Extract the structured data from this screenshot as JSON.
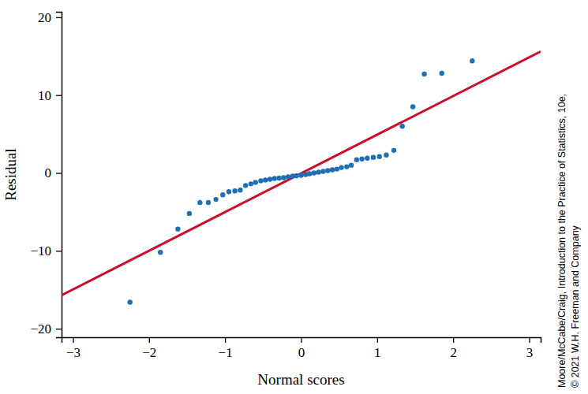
{
  "chart_data": {
    "type": "scatter",
    "x_label": "Normal scores",
    "y_label": "Residual",
    "annotations": [
      "Moore/McCabe/Craig, Introduction to the Practice of Statistics, 10e,",
      "© 2021 W.H. Freeman and Company"
    ],
    "xlim": [
      -3.15,
      3.15
    ],
    "ylim": [
      -21.1,
      20.7
    ],
    "xticks": [
      {
        "value": -3,
        "label": "−3"
      },
      {
        "value": -2,
        "label": "−2"
      },
      {
        "value": -1,
        "label": "−1"
      },
      0,
      1,
      2,
      3
    ],
    "yticks": [
      {
        "value": -20,
        "label": "−20"
      },
      {
        "value": -10,
        "label": "−10"
      },
      0,
      10,
      20
    ],
    "grid": false,
    "series": [
      {
        "type": "scatter",
        "color": "#1f6fb4",
        "marker": "circle",
        "x": [
          -2.25,
          -1.85,
          -1.62,
          -1.47,
          -1.33,
          -1.22,
          -1.12,
          -1.03,
          -0.95,
          -0.87,
          -0.8,
          -0.73,
          -0.66,
          -0.6,
          -0.53,
          -0.47,
          -0.41,
          -0.35,
          -0.29,
          -0.23,
          -0.17,
          -0.11,
          -0.06,
          0,
          0.06,
          0.11,
          0.17,
          0.23,
          0.29,
          0.35,
          0.41,
          0.47,
          0.53,
          0.6,
          0.66,
          0.73,
          0.8,
          0.87,
          0.95,
          1.03,
          1.12,
          1.22,
          1.33,
          1.47,
          1.62,
          1.85,
          2.25
        ],
        "values": [
          -16.6,
          -10.2,
          -7.2,
          -5.2,
          -3.8,
          -3.8,
          -3.4,
          -2.8,
          -2.4,
          -2.3,
          -2.2,
          -1.6,
          -1.4,
          -1.2,
          -1.0,
          -0.9,
          -0.8,
          -0.7,
          -0.65,
          -0.6,
          -0.5,
          -0.4,
          -0.35,
          -0.3,
          -0.2,
          -0.1,
          0,
          0.1,
          0.2,
          0.3,
          0.4,
          0.5,
          0.7,
          0.8,
          1.0,
          1.7,
          1.8,
          1.9,
          2.0,
          2.1,
          2.3,
          2.9,
          6.0,
          8.5,
          12.7,
          12.8,
          14.4
        ]
      },
      {
        "type": "line",
        "color": "#c8102e",
        "line_style": "solid",
        "x": [
          -3.15,
          3.15
        ],
        "values": [
          -15.7,
          15.6
        ]
      }
    ]
  }
}
